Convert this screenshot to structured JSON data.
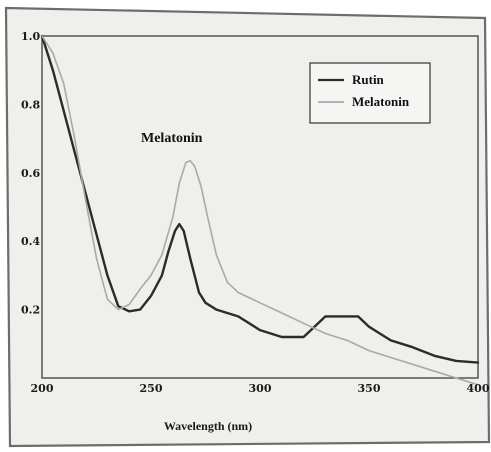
{
  "chart_data": {
    "type": "line",
    "title": "",
    "xlabel": "Wavelength (nm)",
    "ylabel": "",
    "xlim": [
      200,
      400
    ],
    "ylim": [
      0.0,
      1.0
    ],
    "x_ticks": [
      200,
      250,
      300,
      350,
      400
    ],
    "y_ticks": [
      {
        "value": 0.2,
        "label": "0.2"
      },
      {
        "value": 0.4,
        "label": "0.4"
      },
      {
        "value": 0.6,
        "label": "0.6"
      },
      {
        "value": 0.8,
        "label": "0.8"
      },
      {
        "value": 1.0,
        "label": "1.0"
      }
    ],
    "grid": false,
    "legend_position": "top-right",
    "annotations": [
      {
        "text": "Melatonin",
        "x": 263,
        "y": 0.72
      }
    ],
    "series": [
      {
        "name": "Rutin",
        "color": "#2b2b2b",
        "x": [
          200,
          205,
          210,
          215,
          220,
          225,
          230,
          235,
          240,
          245,
          250,
          255,
          258,
          261,
          263,
          265,
          268,
          272,
          275,
          280,
          290,
          300,
          310,
          320,
          325,
          330,
          340,
          345,
          350,
          360,
          370,
          380,
          390,
          400
        ],
        "y": [
          1.0,
          0.9,
          0.78,
          0.66,
          0.54,
          0.42,
          0.3,
          0.21,
          0.195,
          0.2,
          0.24,
          0.3,
          0.37,
          0.43,
          0.45,
          0.43,
          0.35,
          0.25,
          0.22,
          0.2,
          0.18,
          0.14,
          0.12,
          0.12,
          0.15,
          0.18,
          0.18,
          0.18,
          0.15,
          0.11,
          0.09,
          0.065,
          0.05,
          0.045
        ]
      },
      {
        "name": "Melatonin",
        "color": "#a9a9a9",
        "x": [
          200,
          205,
          210,
          215,
          220,
          225,
          230,
          235,
          240,
          245,
          250,
          255,
          260,
          263,
          266,
          268,
          270,
          273,
          276,
          280,
          285,
          290,
          300,
          310,
          320,
          330,
          340,
          350,
          360,
          370,
          380,
          390,
          400
        ],
        "y": [
          1.0,
          0.95,
          0.86,
          0.7,
          0.52,
          0.35,
          0.23,
          0.2,
          0.215,
          0.26,
          0.3,
          0.36,
          0.47,
          0.57,
          0.63,
          0.635,
          0.62,
          0.56,
          0.47,
          0.36,
          0.28,
          0.25,
          0.22,
          0.19,
          0.16,
          0.13,
          0.11,
          0.08,
          0.06,
          0.04,
          0.02,
          0.0,
          -0.02
        ]
      }
    ]
  }
}
